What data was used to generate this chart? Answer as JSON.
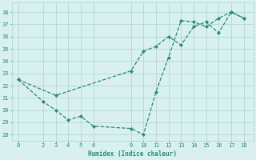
{
  "xlabel": "Humidex (Indice chaleur)",
  "line_color": "#2d8b7a",
  "bg_color": "#d8f0ee",
  "grid_color": "#aed4cf",
  "xlim": [
    -0.5,
    18.8
  ],
  "ylim": [
    27.5,
    38.8
  ],
  "xticks": [
    0,
    2,
    3,
    4,
    5,
    6,
    9,
    10,
    11,
    12,
    13,
    14,
    15,
    16,
    17,
    18
  ],
  "yticks": [
    28,
    29,
    30,
    31,
    32,
    33,
    34,
    35,
    36,
    37,
    38
  ],
  "xa": [
    0,
    2,
    3,
    4,
    5,
    6,
    9,
    10,
    11,
    12,
    13,
    14,
    15,
    16,
    17,
    18
  ],
  "ya": [
    32.5,
    30.7,
    30.0,
    29.2,
    29.5,
    28.7,
    28.5,
    28.0,
    31.5,
    34.3,
    37.3,
    37.2,
    36.8,
    37.5,
    38.0,
    37.5
  ],
  "xb": [
    0,
    3,
    9,
    10,
    11,
    12,
    13,
    14,
    15,
    16,
    17,
    18
  ],
  "yb": [
    32.5,
    31.2,
    33.2,
    34.8,
    35.2,
    36.0,
    35.3,
    36.8,
    37.2,
    36.3,
    38.0,
    37.5
  ]
}
